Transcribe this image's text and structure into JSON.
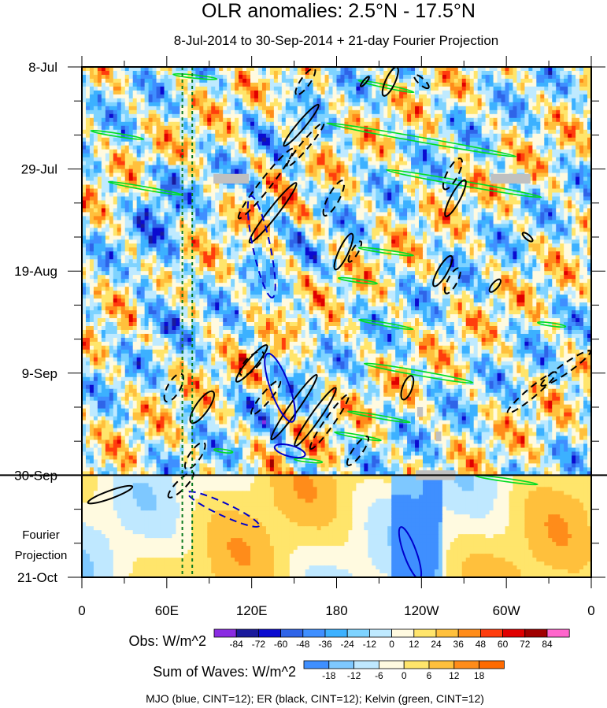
{
  "chart_data": {
    "type": "heatmap",
    "title": "OLR anomalies: 2.5°N - 17.5°N",
    "subtitle": "8-Jul-2014 to 30-Sep-2014 + 21-day Fourier Projection",
    "x_ticks": [
      {
        "lon": 0,
        "label": "0"
      },
      {
        "lon": 60,
        "label": "60E"
      },
      {
        "lon": 120,
        "label": "120E"
      },
      {
        "lon": 180,
        "label": "180"
      },
      {
        "lon": 240,
        "label": "120W"
      },
      {
        "lon": 300,
        "label": "60W"
      },
      {
        "lon": 360,
        "label": "0"
      }
    ],
    "y_ticks": [
      {
        "day": 0,
        "label": "8-Jul"
      },
      {
        "day": 21,
        "label": "29-Jul"
      },
      {
        "day": 42,
        "label": "19-Aug"
      },
      {
        "day": 63,
        "label": "9-Sep"
      },
      {
        "day": 84,
        "label": "30-Sep"
      },
      {
        "day": 105,
        "label": "21-Oct"
      }
    ],
    "xlim": [
      0,
      360
    ],
    "ylim_days": [
      0,
      105
    ],
    "observation_end_day": 84,
    "projection_label": [
      "Fourier",
      "Projection"
    ],
    "reference_lines_lon": [
      71,
      78
    ],
    "obs_colorbar": {
      "label": "Obs: W/m^2",
      "levels": [
        -84,
        -72,
        -60,
        -48,
        -36,
        -24,
        -12,
        0,
        12,
        24,
        36,
        48,
        60,
        72,
        84
      ],
      "colors": [
        "#8a2be2",
        "#1a1a9c",
        "#0b0bd0",
        "#2f64e8",
        "#3f8fff",
        "#3cb1ff",
        "#7ed3ff",
        "#bfeaff",
        "#fffae0",
        "#ffe56b",
        "#ffc03c",
        "#ff8c1a",
        "#ff3d0d",
        "#e00000",
        "#a00000",
        "#ff66cc"
      ]
    },
    "waves_colorbar": {
      "label": "Sum of Waves: W/m^2",
      "levels": [
        -18,
        -12,
        -6,
        0,
        6,
        12,
        18
      ],
      "colors": [
        "#3f8fff",
        "#7ec8ff",
        "#bfe8ff",
        "#fffae0",
        "#ffe56b",
        "#ffc03c",
        "#ff8c1a",
        "#ff6a00"
      ]
    },
    "contour_legend": "MJO (blue, CINT=12); ER (black, CINT=12); Kelvin (green, CINT=12)",
    "series_colors": {
      "mjo": "#0000cc",
      "er": "#000000",
      "kelvin": "#00dd22"
    },
    "gray_box_color": "#c0c0c0"
  }
}
